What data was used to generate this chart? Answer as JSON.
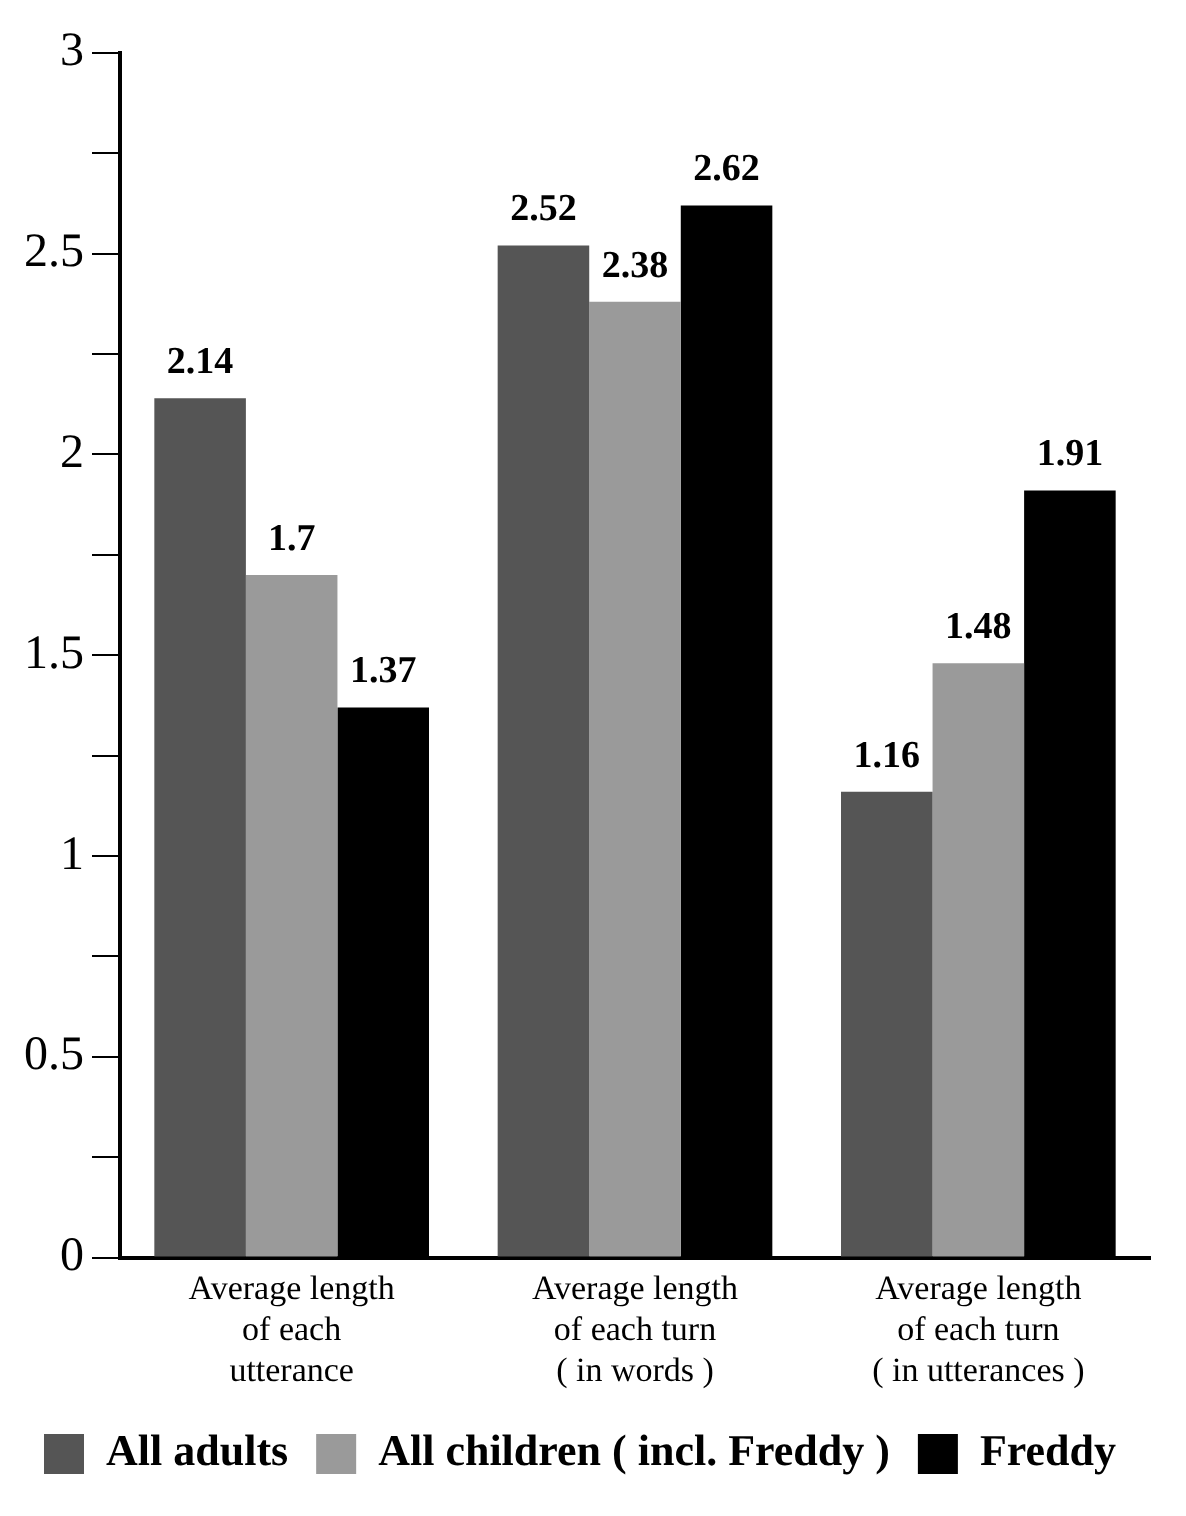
{
  "chart_data": {
    "type": "bar",
    "categories": [
      "Average length of each utterance",
      "Average length of each turn ( in words )",
      "Average length of each turn ( in utterances )"
    ],
    "series": [
      {
        "name": "All adults",
        "color": "#555555",
        "values": [
          2.14,
          2.52,
          1.16
        ]
      },
      {
        "name": "All children ( incl. Freddy )",
        "color": "#9a9a9a",
        "values": [
          1.7,
          2.38,
          1.48
        ]
      },
      {
        "name": "Freddy",
        "color": "#000000",
        "values": [
          1.37,
          2.62,
          1.91
        ]
      }
    ],
    "ylim": [
      0,
      3
    ],
    "yticks": [
      0,
      {
        "value": 0.25,
        "label": null
      },
      0.5,
      {
        "value": 0.75,
        "label": null
      },
      1,
      {
        "value": 1.25,
        "label": null
      },
      1.5,
      {
        "value": 1.75,
        "label": null
      },
      2,
      {
        "value": 2.25,
        "label": null
      },
      2.5,
      {
        "value": 2.75,
        "label": null
      },
      3
    ],
    "grid": false,
    "legend": "bottom",
    "data_labels": true
  }
}
